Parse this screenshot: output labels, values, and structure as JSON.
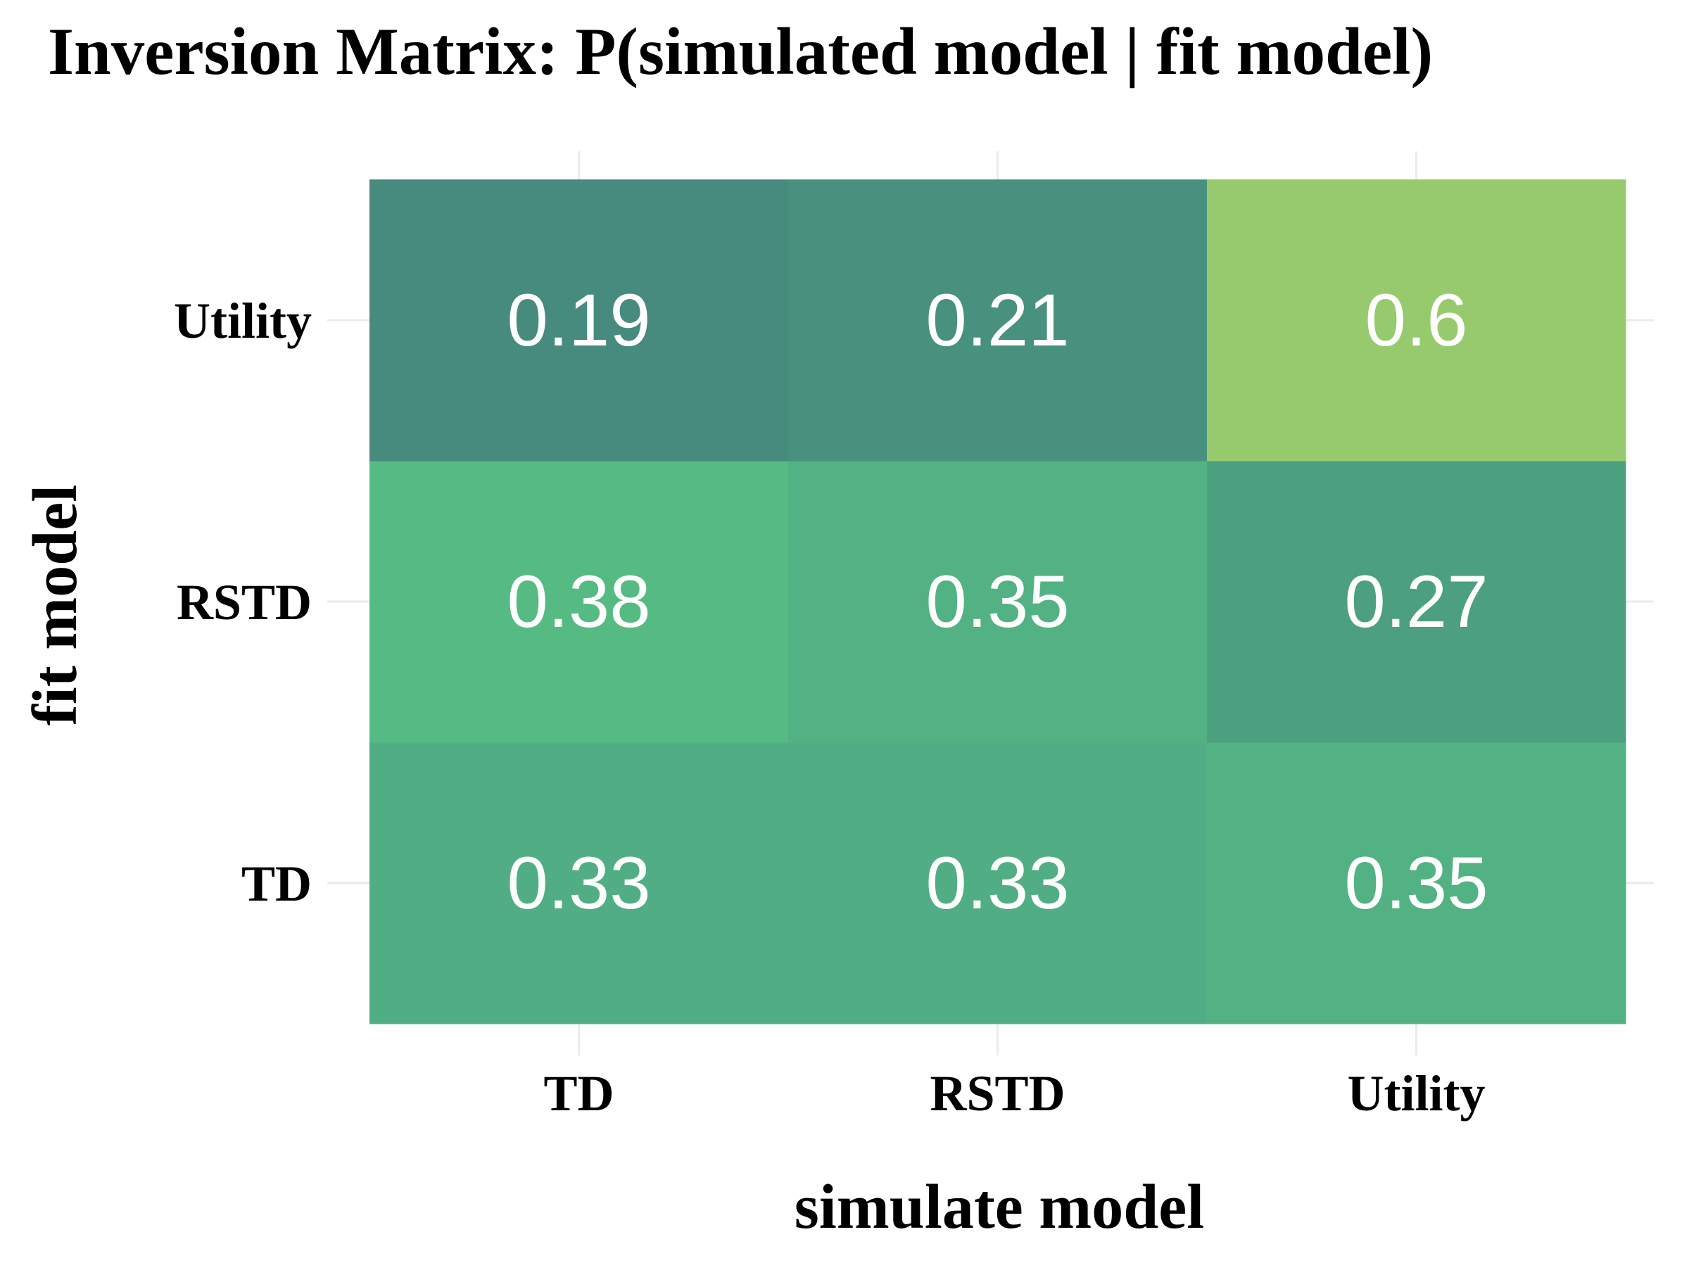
{
  "chart_data": {
    "type": "heatmap",
    "title": "Inversion Matrix: P(simulated model | fit model)",
    "xlabel": "simulate model",
    "ylabel": "fit model",
    "x_categories": [
      "TD",
      "RSTD",
      "Utility"
    ],
    "y_categories": [
      "TD",
      "RSTD",
      "Utility"
    ],
    "values": [
      [
        0.33,
        0.33,
        0.35
      ],
      [
        0.38,
        0.35,
        0.27
      ],
      [
        0.19,
        0.21,
        0.6
      ]
    ],
    "value_labels": [
      [
        "0.33",
        "0.33",
        "0.35"
      ],
      [
        "0.38",
        "0.35",
        "0.27"
      ],
      [
        "0.19",
        "0.21",
        "0.6"
      ]
    ],
    "grid": true,
    "legend": "none",
    "colors": {
      "cell_text": "#ffffff",
      "grid": "#ebebeb",
      "palette": {
        "0.19": "#468b7d",
        "0.21": "#48917e",
        "0.27": "#4ca07f",
        "0.33": "#51ae84",
        "0.35": "#52b283",
        "0.38": "#55bb83",
        "0.6": "#97ca6d"
      }
    }
  }
}
